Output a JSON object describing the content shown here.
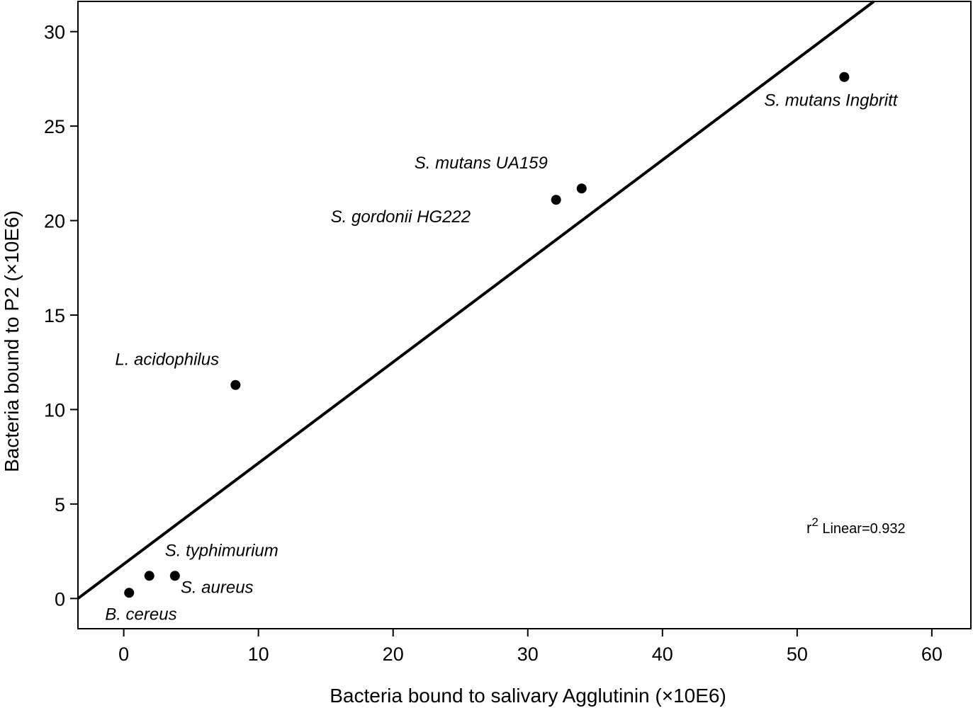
{
  "chart_data": {
    "type": "scatter",
    "xlabel": "Bacteria bound to salivary Agglutinin (×10E6)",
    "ylabel": "Bacteria bound to P2 (×10E6)",
    "xlim": [
      -3.4,
      62.9
    ],
    "ylim": [
      -1.6,
      31.6
    ],
    "xticks": [
      0,
      10,
      20,
      30,
      40,
      50,
      60
    ],
    "yticks": [
      0,
      5,
      10,
      15,
      20,
      25,
      30
    ],
    "grid": false,
    "points": [
      {
        "label": "B. cereus",
        "x": 0.4,
        "y": 0.3
      },
      {
        "label": "S. typhimurium",
        "x": 1.9,
        "y": 1.2
      },
      {
        "label": "S. aureus",
        "x": 3.8,
        "y": 1.2
      },
      {
        "label": "L. acidophilus",
        "x": 8.3,
        "y": 11.3
      },
      {
        "label": "S. gordonii HG222",
        "x": 32.1,
        "y": 21.1
      },
      {
        "label": "S. mutans UA159",
        "x": 34.0,
        "y": 21.7
      },
      {
        "label": "S. mutans Ingbritt",
        "x": 53.5,
        "y": 27.6
      }
    ],
    "fit_line": {
      "x": [
        -3.4,
        55.7
      ],
      "y": [
        0.0,
        31.6
      ]
    },
    "annotation": {
      "r": "r",
      "sup": "2",
      "text": " Linear=0.932"
    }
  }
}
